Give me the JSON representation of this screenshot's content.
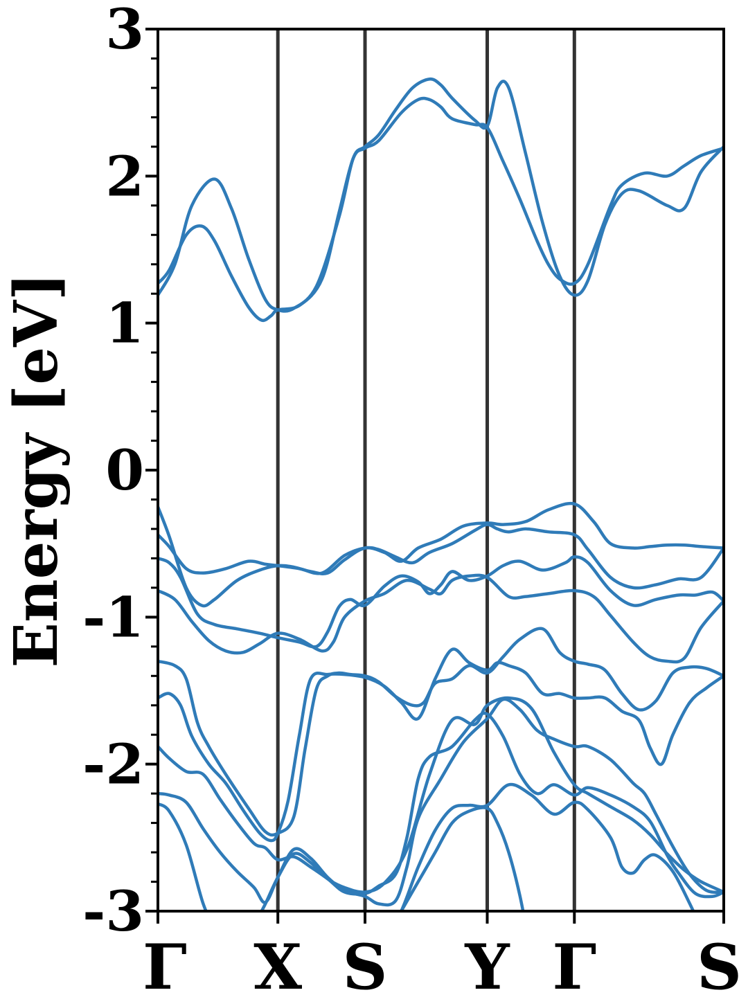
{
  "chart_data": {
    "type": "line",
    "ylabel": "Energy [eV]",
    "xlabel": "",
    "ylim": [
      -3,
      3
    ],
    "y_ticks": [
      "-3",
      "-2",
      "-1",
      "0",
      "1",
      "2",
      "3"
    ],
    "y_minor_step": 0.2,
    "grid": false,
    "legend": "none",
    "colors": {
      "band": "#2f7bb8",
      "kpoint_line": "#333333",
      "axis": "#000000"
    },
    "kpoints": [
      {
        "label": "Γ",
        "x": 0.0
      },
      {
        "label": "X",
        "x": 0.212
      },
      {
        "label": "S",
        "x": 0.366
      },
      {
        "label": "Y",
        "x": 0.582
      },
      {
        "label": "Γ",
        "x": 0.736
      },
      {
        "label": "S",
        "x": 1.0
      }
    ],
    "series": [
      {
        "x": [
          0.0,
          0.02,
          0.05,
          0.077,
          0.1,
          0.13,
          0.16,
          0.183,
          0.2,
          0.212,
          0.25,
          0.29,
          0.32,
          0.345,
          0.366,
          0.39,
          0.43,
          0.46,
          0.48,
          0.5,
          0.52,
          0.56,
          0.582,
          0.61,
          0.64,
          0.67,
          0.69,
          0.71,
          0.736,
          0.76,
          0.8,
          0.82,
          0.86,
          0.9,
          0.93,
          0.96,
          1.0
        ],
        "y": [
          1.27,
          1.36,
          1.6,
          1.66,
          1.56,
          1.32,
          1.11,
          1.02,
          1.05,
          1.09,
          1.12,
          1.3,
          1.75,
          2.12,
          2.19,
          2.24,
          2.43,
          2.52,
          2.52,
          2.47,
          2.39,
          2.35,
          2.33,
          2.1,
          1.84,
          1.56,
          1.4,
          1.3,
          1.27,
          1.4,
          1.8,
          1.94,
          2.02,
          2.0,
          2.07,
          2.14,
          2.19
        ]
      },
      {
        "x": [
          0.0,
          0.03,
          0.06,
          0.1,
          0.13,
          0.16,
          0.19,
          0.212,
          0.24,
          0.28,
          0.32,
          0.345,
          0.366,
          0.39,
          0.42,
          0.45,
          0.48,
          0.5,
          0.52,
          0.56,
          0.582,
          0.6,
          0.62,
          0.65,
          0.68,
          0.71,
          0.736,
          0.76,
          0.79,
          0.82,
          0.85,
          0.9,
          0.93,
          0.96,
          1.0
        ],
        "y": [
          1.19,
          1.4,
          1.8,
          1.98,
          1.78,
          1.44,
          1.16,
          1.09,
          1.1,
          1.25,
          1.72,
          2.12,
          2.2,
          2.28,
          2.45,
          2.6,
          2.66,
          2.62,
          2.53,
          2.38,
          2.34,
          2.6,
          2.6,
          2.15,
          1.68,
          1.32,
          1.19,
          1.29,
          1.67,
          1.88,
          1.9,
          1.8,
          1.78,
          2.03,
          2.2
        ]
      },
      {
        "x": [
          0.0,
          0.02,
          0.05,
          0.077,
          0.1,
          0.14,
          0.18,
          0.212,
          0.24,
          0.27,
          0.3,
          0.33,
          0.366,
          0.4,
          0.43,
          0.46,
          0.5,
          0.54,
          0.582,
          0.61,
          0.65,
          0.69,
          0.736,
          0.77,
          0.8,
          0.84,
          0.87,
          0.9,
          0.93,
          0.96,
          1.0
        ],
        "y": [
          -0.25,
          -0.45,
          -0.8,
          -0.92,
          -0.88,
          -0.75,
          -0.68,
          -0.65,
          -0.66,
          -0.69,
          -0.7,
          -0.61,
          -0.53,
          -0.56,
          -0.62,
          -0.53,
          -0.47,
          -0.38,
          -0.36,
          -0.37,
          -0.35,
          -0.27,
          -0.23,
          -0.35,
          -0.5,
          -0.53,
          -0.52,
          -0.51,
          -0.51,
          -0.52,
          -0.53
        ]
      },
      {
        "x": [
          0.0,
          0.02,
          0.05,
          0.08,
          0.12,
          0.16,
          0.19,
          0.212,
          0.25,
          0.29,
          0.33,
          0.366,
          0.39,
          0.42,
          0.45,
          0.48,
          0.52,
          0.56,
          0.582,
          0.6,
          0.62,
          0.65,
          0.69,
          0.736,
          0.76,
          0.8,
          0.84,
          0.88,
          0.92,
          0.96,
          1.0
        ],
        "y": [
          -0.44,
          -0.52,
          -0.67,
          -0.7,
          -0.67,
          -0.62,
          -0.64,
          -0.65,
          -0.67,
          -0.7,
          -0.58,
          -0.53,
          -0.54,
          -0.59,
          -0.63,
          -0.56,
          -0.5,
          -0.41,
          -0.37,
          -0.4,
          -0.42,
          -0.4,
          -0.42,
          -0.44,
          -0.54,
          -0.73,
          -0.8,
          -0.78,
          -0.74,
          -0.73,
          -0.53
        ]
      },
      {
        "x": [
          0.0,
          0.02,
          0.04,
          0.07,
          0.1,
          0.14,
          0.18,
          0.212,
          0.25,
          0.28,
          0.3,
          0.32,
          0.34,
          0.366,
          0.4,
          0.43,
          0.46,
          0.48,
          0.5,
          0.52,
          0.55,
          0.582,
          0.61,
          0.64,
          0.68,
          0.72,
          0.736,
          0.76,
          0.8,
          0.84,
          0.88,
          0.92,
          0.95,
          0.98,
          1.0
        ],
        "y": [
          -0.6,
          -0.63,
          -0.73,
          -0.98,
          -1.05,
          -1.08,
          -1.11,
          -1.14,
          -1.17,
          -1.2,
          -1.1,
          -0.93,
          -0.88,
          -0.92,
          -0.79,
          -0.72,
          -0.76,
          -0.84,
          -0.78,
          -0.69,
          -0.75,
          -0.72,
          -0.65,
          -0.62,
          -0.68,
          -0.63,
          -0.59,
          -0.63,
          -0.82,
          -0.92,
          -0.88,
          -0.85,
          -0.85,
          -0.83,
          -0.89
        ]
      },
      {
        "x": [
          0.0,
          0.03,
          0.06,
          0.09,
          0.12,
          0.15,
          0.18,
          0.212,
          0.25,
          0.29,
          0.31,
          0.33,
          0.366,
          0.4,
          0.44,
          0.48,
          0.5,
          0.52,
          0.55,
          0.582,
          0.62,
          0.65,
          0.69,
          0.736,
          0.77,
          0.8,
          0.84,
          0.87,
          0.9,
          0.93,
          0.96,
          1.0
        ],
        "y": [
          -0.82,
          -0.88,
          -1.03,
          -1.16,
          -1.23,
          -1.24,
          -1.18,
          -1.11,
          -1.15,
          -1.23,
          -1.17,
          -1.0,
          -0.89,
          -0.84,
          -0.75,
          -0.81,
          -0.84,
          -0.75,
          -0.72,
          -0.73,
          -0.86,
          -0.86,
          -0.84,
          -0.82,
          -0.86,
          -0.99,
          -1.17,
          -1.27,
          -1.3,
          -1.28,
          -1.07,
          -0.89
        ]
      },
      {
        "x": [
          0.0,
          0.03,
          0.05,
          0.07,
          0.09,
          0.12,
          0.16,
          0.19,
          0.212,
          0.24,
          0.26,
          0.28,
          0.3,
          0.32,
          0.34,
          0.366,
          0.39,
          0.42,
          0.45,
          0.47,
          0.49,
          0.52,
          0.55,
          0.582,
          0.61,
          0.64,
          0.68,
          0.71,
          0.736,
          0.76,
          0.79,
          0.82,
          0.85,
          0.88,
          0.91,
          0.94,
          0.97,
          1.0
        ],
        "y": [
          -1.3,
          -1.33,
          -1.42,
          -1.72,
          -1.88,
          -2.07,
          -2.3,
          -2.46,
          -2.47,
          -2.36,
          -1.9,
          -1.49,
          -1.4,
          -1.38,
          -1.39,
          -1.4,
          -1.44,
          -1.54,
          -1.6,
          -1.58,
          -1.45,
          -1.42,
          -1.33,
          -1.38,
          -1.27,
          -1.15,
          -1.08,
          -1.24,
          -1.3,
          -1.32,
          -1.36,
          -1.52,
          -1.63,
          -1.57,
          -1.38,
          -1.34,
          -1.35,
          -1.4
        ]
      },
      {
        "x": [
          0.0,
          0.02,
          0.04,
          0.06,
          0.09,
          0.12,
          0.15,
          0.18,
          0.2,
          0.212,
          0.23,
          0.25,
          0.27,
          0.3,
          0.33,
          0.366,
          0.4,
          0.43,
          0.46,
          0.49,
          0.52,
          0.55,
          0.582,
          0.6,
          0.62,
          0.65,
          0.68,
          0.71,
          0.736,
          0.76,
          0.79,
          0.82,
          0.85,
          0.87,
          0.89,
          0.91,
          0.94,
          0.97,
          1.0
        ],
        "y": [
          -1.55,
          -1.52,
          -1.6,
          -1.81,
          -2.0,
          -2.13,
          -2.31,
          -2.47,
          -2.52,
          -2.47,
          -2.25,
          -1.8,
          -1.42,
          -1.39,
          -1.39,
          -1.41,
          -1.47,
          -1.58,
          -1.69,
          -1.42,
          -1.22,
          -1.31,
          -1.36,
          -1.31,
          -1.33,
          -1.38,
          -1.52,
          -1.52,
          -1.55,
          -1.55,
          -1.55,
          -1.64,
          -1.7,
          -1.89,
          -2.0,
          -1.8,
          -1.58,
          -1.48,
          -1.4
        ]
      },
      {
        "x": [
          0.0,
          0.02,
          0.05,
          0.08,
          0.11,
          0.14,
          0.17,
          0.19,
          0.212,
          0.24,
          0.27,
          0.3,
          0.33,
          0.366,
          0.39,
          0.42,
          0.44,
          0.46,
          0.48,
          0.52,
          0.56,
          0.582,
          0.61,
          0.64,
          0.67,
          0.7,
          0.736,
          0.76,
          0.8,
          0.84,
          0.87,
          0.9,
          0.92,
          0.95,
          0.98,
          1.0
        ],
        "y": [
          -1.88,
          -1.96,
          -2.05,
          -2.07,
          -2.24,
          -2.4,
          -2.54,
          -2.57,
          -2.65,
          -2.63,
          -2.7,
          -2.78,
          -2.87,
          -2.88,
          -2.83,
          -2.75,
          -2.5,
          -2.1,
          -1.95,
          -1.88,
          -1.7,
          -1.66,
          -1.81,
          -2.07,
          -2.2,
          -2.14,
          -2.21,
          -2.16,
          -2.21,
          -2.29,
          -2.39,
          -2.62,
          -2.74,
          -2.88,
          -2.9,
          -2.87
        ]
      },
      {
        "x": [
          0.0,
          0.02,
          0.05,
          0.08,
          0.11,
          0.14,
          0.17,
          0.19,
          0.212,
          0.24,
          0.27,
          0.3,
          0.33,
          0.366,
          0.39,
          0.42,
          0.44,
          0.46,
          0.5,
          0.54,
          0.582,
          0.61,
          0.64,
          0.67,
          0.7,
          0.736,
          0.76,
          0.8,
          0.84,
          0.86,
          0.88,
          0.91,
          0.94,
          0.97,
          1.0
        ],
        "y": [
          -2.2,
          -2.21,
          -2.26,
          -2.44,
          -2.6,
          -2.73,
          -2.84,
          -2.94,
          -2.77,
          -2.58,
          -2.64,
          -2.77,
          -2.86,
          -2.9,
          -2.95,
          -2.93,
          -2.7,
          -2.37,
          -2.1,
          -1.85,
          -1.69,
          -1.56,
          -1.63,
          -1.77,
          -1.83,
          -1.88,
          -1.88,
          -1.97,
          -2.13,
          -2.2,
          -2.34,
          -2.56,
          -2.75,
          -2.86,
          -2.87
        ]
      },
      {
        "x": [
          0.0,
          0.02,
          0.05,
          0.08,
          0.1,
          0.13,
          0.15,
          0.17,
          0.19,
          0.212,
          0.24,
          0.27,
          0.3,
          0.33,
          0.366,
          0.4,
          0.44,
          0.48,
          0.52,
          0.56,
          0.582,
          0.62,
          0.66,
          0.7,
          0.736,
          0.76,
          0.8,
          0.84,
          0.87,
          0.9,
          0.93,
          0.96,
          1.0
        ],
        "y": [
          -2.27,
          -2.32,
          -2.55,
          -2.95,
          -3.1,
          -3.3,
          -3.3,
          -3.1,
          -2.95,
          -2.77,
          -2.61,
          -2.67,
          -2.78,
          -2.84,
          -2.87,
          -2.81,
          -2.58,
          -2.07,
          -1.7,
          -1.73,
          -1.6,
          -1.55,
          -1.62,
          -1.92,
          -2.14,
          -2.2,
          -2.29,
          -2.38,
          -2.48,
          -2.61,
          -2.72,
          -2.8,
          -2.87
        ]
      },
      {
        "x": [
          0.37,
          0.4,
          0.43,
          0.46,
          0.49,
          0.52,
          0.55,
          0.582,
          0.62,
          0.66,
          0.7,
          0.736,
          0.76,
          0.8,
          0.82,
          0.84,
          0.86,
          0.88,
          0.91,
          0.94,
          0.97
        ],
        "y": [
          -3.3,
          -3.2,
          -3.0,
          -2.7,
          -2.45,
          -2.3,
          -2.28,
          -2.28,
          -2.14,
          -2.21,
          -2.34,
          -2.26,
          -2.31,
          -2.5,
          -2.7,
          -2.74,
          -2.65,
          -2.62,
          -2.73,
          -2.95,
          -3.2
        ]
      },
      {
        "x": [
          0.4,
          0.43,
          0.46,
          0.49,
          0.52,
          0.55,
          0.582,
          0.6,
          0.62,
          0.64,
          0.66
        ],
        "y": [
          -3.2,
          -3.0,
          -2.8,
          -2.6,
          -2.4,
          -2.32,
          -2.3,
          -2.4,
          -2.6,
          -2.9,
          -3.3
        ]
      }
    ]
  }
}
